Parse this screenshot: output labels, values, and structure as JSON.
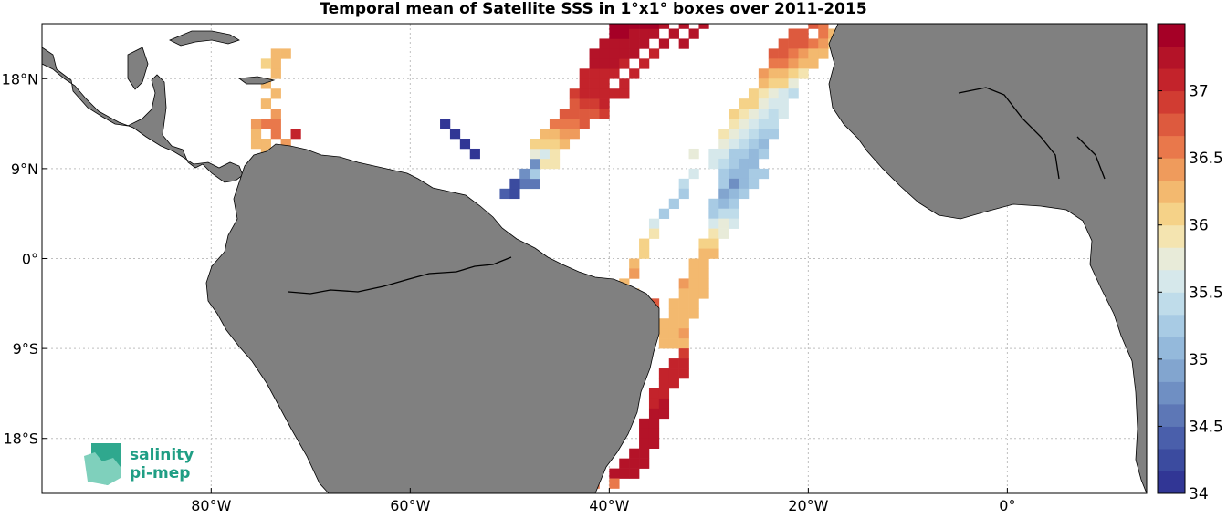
{
  "title": "Temporal mean of Satellite SSS in 1°x1° boxes over 2011-2015",
  "lon_ticks": [
    {
      "lon": -80,
      "label": "80°W"
    },
    {
      "lon": -60,
      "label": "60°W"
    },
    {
      "lon": -40,
      "label": "40°W"
    },
    {
      "lon": -20,
      "label": "20°W"
    },
    {
      "lon": 0,
      "label": "0°"
    }
  ],
  "lat_ticks": [
    {
      "lat": 18,
      "label": "18°N"
    },
    {
      "lat": 9,
      "label": "9°N"
    },
    {
      "lat": 0,
      "label": "0°"
    },
    {
      "lat": -9,
      "label": "9°S"
    },
    {
      "lat": -18,
      "label": "18°S"
    }
  ],
  "map_extent": {
    "lon": [
      -97,
      14
    ],
    "lat": [
      -23.5,
      23.5
    ]
  },
  "colorbar": {
    "min": 34,
    "max": 37.5,
    "step": 0.125,
    "tick_values": [
      34,
      34.5,
      35,
      35.5,
      36,
      36.5,
      37
    ],
    "tick_labels": [
      "34",
      "34.5",
      "35",
      "35.5",
      "36",
      "36.5",
      "37"
    ],
    "colors": [
      "#313695",
      "#3b4b9f",
      "#4a5fab",
      "#5d77b6",
      "#6f8fc3",
      "#82a5cf",
      "#94b9db",
      "#a8cbe4",
      "#bfdcea",
      "#d6e8eb",
      "#e8ebd9",
      "#f4e4b0",
      "#f5d288",
      "#f3b96f",
      "#ef9b5c",
      "#e9784b",
      "#dd5a3e",
      "#d13c32",
      "#c3232b",
      "#b41328",
      "#a50026"
    ]
  },
  "logo": {
    "line1": "salinity",
    "line2": "pi-mep"
  },
  "colors": {
    "land": "#808080",
    "coast": "#000000",
    "grid": "#bfbfbf"
  },
  "chart_data": {
    "type": "heatmap",
    "variable": "SSS",
    "grid": "1°x1° boxes",
    "cells": [
      [
        -73,
        20,
        36.3
      ],
      [
        -74,
        20,
        36.2
      ],
      [
        -74,
        19,
        36.2
      ],
      [
        -75,
        19,
        36.1
      ],
      [
        -74,
        18,
        36.3
      ],
      [
        -75,
        17,
        36.2
      ],
      [
        -74,
        16,
        36.3
      ],
      [
        -75,
        15,
        36.3
      ],
      [
        -74,
        14,
        36.4
      ],
      [
        -75,
        13,
        36.5
      ],
      [
        -76,
        13,
        36.4
      ],
      [
        -74,
        13,
        36.5
      ],
      [
        -76,
        12,
        36.3
      ],
      [
        -74,
        12,
        36.6
      ],
      [
        -75,
        11,
        36.3
      ],
      [
        -72,
        12,
        37.1
      ],
      [
        -73,
        11,
        36.4
      ],
      [
        -76,
        11,
        36.2
      ],
      [
        -74,
        10,
        36.2
      ],
      [
        -75,
        10,
        36.2
      ],
      [
        -57,
        13,
        34.1
      ],
      [
        -56,
        12,
        34.1
      ],
      [
        -55,
        11,
        34.0
      ],
      [
        -54,
        10,
        34.1
      ],
      [
        -51,
        6,
        34.4
      ],
      [
        -50,
        6,
        34.2
      ],
      [
        -49,
        7,
        34.5
      ],
      [
        -48,
        7,
        34.6
      ],
      [
        -50,
        7,
        34.3
      ],
      [
        -48,
        8,
        35.2
      ],
      [
        -48,
        9,
        34.7
      ],
      [
        -49,
        8,
        34.7
      ],
      [
        -47,
        9,
        35.9
      ],
      [
        -46,
        9,
        35.9
      ],
      [
        -48,
        10,
        35.7
      ],
      [
        -47,
        10,
        35.6
      ],
      [
        -46,
        10,
        35.9
      ],
      [
        -48,
        11,
        36.0
      ],
      [
        -47,
        11,
        36.1
      ],
      [
        -46,
        11,
        36.1
      ],
      [
        -45,
        11,
        36.3
      ],
      [
        -47,
        12,
        36.3
      ],
      [
        -46,
        12,
        36.3
      ],
      [
        -45,
        12,
        36.4
      ],
      [
        -44,
        12,
        36.4
      ],
      [
        -46,
        13,
        36.5
      ],
      [
        -45,
        13,
        36.6
      ],
      [
        -44,
        13,
        36.5
      ],
      [
        -43,
        13,
        36.7
      ],
      [
        -45,
        14,
        36.7
      ],
      [
        -44,
        14,
        36.7
      ],
      [
        -43,
        14,
        36.8
      ],
      [
        -42,
        14,
        36.8
      ],
      [
        -41,
        14,
        36.9
      ],
      [
        -44,
        15,
        36.8
      ],
      [
        -43,
        15,
        36.9
      ],
      [
        -42,
        15,
        36.9
      ],
      [
        -41,
        15,
        37.0
      ],
      [
        -44,
        16,
        36.9
      ],
      [
        -43,
        16,
        37.0
      ],
      [
        -42,
        16,
        37.0
      ],
      [
        -41,
        16,
        37.0
      ],
      [
        -40,
        16,
        37.0
      ],
      [
        -39,
        16,
        37.0
      ],
      [
        -43,
        17,
        37.1
      ],
      [
        -42,
        17,
        37.1
      ],
      [
        -41,
        17,
        37.0
      ],
      [
        -39,
        17,
        37.0
      ],
      [
        -43,
        18,
        37.1
      ],
      [
        -42,
        18,
        37.1
      ],
      [
        -41,
        18,
        37.1
      ],
      [
        -40,
        18,
        37.1
      ],
      [
        -38,
        18,
        37.0
      ],
      [
        -42,
        19,
        37.2
      ],
      [
        -41,
        19,
        37.2
      ],
      [
        -40,
        19,
        37.2
      ],
      [
        -39,
        19,
        37.1
      ],
      [
        -37,
        19,
        37.1
      ],
      [
        -42,
        20,
        37.2
      ],
      [
        -41,
        20,
        37.3
      ],
      [
        -40,
        20,
        37.3
      ],
      [
        -39,
        20,
        37.3
      ],
      [
        -38,
        20,
        37.3
      ],
      [
        -36,
        20,
        37.1
      ],
      [
        -41,
        21,
        37.3
      ],
      [
        -40,
        21,
        37.3
      ],
      [
        -39,
        21,
        37.3
      ],
      [
        -38,
        21,
        37.3
      ],
      [
        -37,
        21,
        37.3
      ],
      [
        -35,
        21,
        37.2
      ],
      [
        -33,
        21,
        37.2
      ],
      [
        -40,
        22,
        37.4
      ],
      [
        -39,
        22,
        37.4
      ],
      [
        -38,
        22,
        37.3
      ],
      [
        -37,
        22,
        37.3
      ],
      [
        -36,
        22,
        37.3
      ],
      [
        -34,
        22,
        37.2
      ],
      [
        -32,
        22,
        37.2
      ],
      [
        -40,
        23,
        37.4
      ],
      [
        -39,
        23,
        37.4
      ],
      [
        -38,
        23,
        37.4
      ],
      [
        -37,
        23,
        37.4
      ],
      [
        -36,
        23,
        37.4
      ],
      [
        -35,
        23,
        37.3
      ],
      [
        -33,
        23,
        37.3
      ],
      [
        -31,
        23,
        37.2
      ],
      [
        -20,
        23,
        36.7
      ],
      [
        -19,
        23,
        36.6
      ],
      [
        -22,
        22,
        36.8
      ],
      [
        -21,
        22,
        36.8
      ],
      [
        -19,
        22,
        36.6
      ],
      [
        -18,
        22,
        36.3
      ],
      [
        -23,
        21,
        36.8
      ],
      [
        -22,
        21,
        36.7
      ],
      [
        -21,
        21,
        36.8
      ],
      [
        -20,
        21,
        36.6
      ],
      [
        -19,
        21,
        36.4
      ],
      [
        -18,
        21,
        36.0
      ],
      [
        -24,
        20,
        36.7
      ],
      [
        -23,
        20,
        36.7
      ],
      [
        -22,
        20,
        36.6
      ],
      [
        -21,
        20,
        36.4
      ],
      [
        -20,
        20,
        36.3
      ],
      [
        -19,
        20,
        36.2
      ],
      [
        -24,
        19,
        36.6
      ],
      [
        -23,
        19,
        36.6
      ],
      [
        -22,
        19,
        36.4
      ],
      [
        -21,
        19,
        36.3
      ],
      [
        -20,
        19,
        36.2
      ],
      [
        -25,
        18,
        36.4
      ],
      [
        -24,
        18,
        36.3
      ],
      [
        -23,
        18,
        36.2
      ],
      [
        -22,
        18,
        36.1
      ],
      [
        -21,
        18,
        35.9
      ],
      [
        -25,
        17,
        36.2
      ],
      [
        -24,
        17,
        36.1
      ],
      [
        -23,
        17,
        36.0
      ],
      [
        -22,
        17,
        35.8
      ],
      [
        -26,
        16,
        36.1
      ],
      [
        -25,
        16,
        35.9
      ],
      [
        -24,
        16,
        35.7
      ],
      [
        -23,
        16,
        35.6
      ],
      [
        -22,
        16,
        35.4
      ],
      [
        -27,
        15,
        36.1
      ],
      [
        -26,
        15,
        36.0
      ],
      [
        -25,
        15,
        35.8
      ],
      [
        -24,
        15,
        35.6
      ],
      [
        -23,
        15,
        35.5
      ],
      [
        -28,
        14,
        36.1
      ],
      [
        -27,
        14,
        35.9
      ],
      [
        -26,
        14,
        35.7
      ],
      [
        -25,
        14,
        35.5
      ],
      [
        -24,
        14,
        35.4
      ],
      [
        -23,
        14,
        35.5
      ],
      [
        -28,
        13,
        35.9
      ],
      [
        -27,
        13,
        35.8
      ],
      [
        -26,
        13,
        35.6
      ],
      [
        -25,
        13,
        35.4
      ],
      [
        -24,
        13,
        35.4
      ],
      [
        -29,
        12,
        35.9
      ],
      [
        -28,
        12,
        35.7
      ],
      [
        -27,
        12,
        35.5
      ],
      [
        -26,
        12,
        35.4
      ],
      [
        -25,
        12,
        35.2
      ],
      [
        -24,
        12,
        35.3
      ],
      [
        -29,
        11,
        35.7
      ],
      [
        -28,
        11,
        35.6
      ],
      [
        -27,
        11,
        35.4
      ],
      [
        -26,
        11,
        35.2
      ],
      [
        -25,
        11,
        35.1
      ],
      [
        -32,
        10,
        35.8
      ],
      [
        -30,
        10,
        35.6
      ],
      [
        -29,
        10,
        35.5
      ],
      [
        -28,
        10,
        35.3
      ],
      [
        -27,
        10,
        35.2
      ],
      [
        -26,
        10,
        35.1
      ],
      [
        -25,
        10,
        35.2
      ],
      [
        -30,
        9,
        35.6
      ],
      [
        -29,
        9,
        35.4
      ],
      [
        -28,
        9,
        35.2
      ],
      [
        -27,
        9,
        35.0
      ],
      [
        -26,
        9,
        35.1
      ],
      [
        -32,
        8,
        35.5
      ],
      [
        -29,
        8,
        35.3
      ],
      [
        -28,
        8,
        35.1
      ],
      [
        -27,
        8,
        35.0
      ],
      [
        -26,
        8,
        35.2
      ],
      [
        -25,
        8,
        35.3
      ],
      [
        -33,
        7,
        35.4
      ],
      [
        -29,
        7,
        35.2
      ],
      [
        -28,
        7,
        34.8
      ],
      [
        -27,
        7,
        35.1
      ],
      [
        -26,
        7,
        35.3
      ],
      [
        -33,
        6,
        35.3
      ],
      [
        -29,
        6,
        34.9
      ],
      [
        -28,
        6,
        35.0
      ],
      [
        -27,
        6,
        35.2
      ],
      [
        -34,
        5,
        35.2
      ],
      [
        -30,
        5,
        35.2
      ],
      [
        -29,
        5,
        35.1
      ],
      [
        -28,
        5,
        35.3
      ],
      [
        -35,
        4,
        35.2
      ],
      [
        -30,
        4,
        35.3
      ],
      [
        -29,
        4,
        35.4
      ],
      [
        -28,
        4,
        35.4
      ],
      [
        -36,
        3,
        35.6
      ],
      [
        -30,
        3,
        35.6
      ],
      [
        -29,
        3,
        35.8
      ],
      [
        -28,
        3,
        35.6
      ],
      [
        -36,
        2,
        35.9
      ],
      [
        -30,
        2,
        35.9
      ],
      [
        -29,
        2,
        35.7
      ],
      [
        -37,
        1,
        36.0
      ],
      [
        -31,
        1,
        36.0
      ],
      [
        -30,
        1,
        36.0
      ],
      [
        -37,
        0,
        36.1
      ],
      [
        -31,
        0,
        36.3
      ],
      [
        -30,
        0,
        36.2
      ],
      [
        -38,
        -1,
        36.3
      ],
      [
        -32,
        -1,
        36.3
      ],
      [
        -31,
        -1,
        36.3
      ],
      [
        -38,
        -2,
        36.4
      ],
      [
        -32,
        -2,
        36.3
      ],
      [
        -31,
        -2,
        36.3
      ],
      [
        -39,
        -3,
        36.3
      ],
      [
        -33,
        -3,
        36.4
      ],
      [
        -32,
        -3,
        36.3
      ],
      [
        -31,
        -3,
        36.2
      ],
      [
        -38,
        -4,
        36.3
      ],
      [
        -33,
        -4,
        36.3
      ],
      [
        -32,
        -4,
        36.3
      ],
      [
        -31,
        -4,
        36.2
      ],
      [
        -37,
        -5,
        36.7
      ],
      [
        -36,
        -5,
        36.8
      ],
      [
        -34,
        -5,
        36.2
      ],
      [
        -33,
        -5,
        36.3
      ],
      [
        -32,
        -5,
        36.3
      ],
      [
        -34,
        -6,
        36.3
      ],
      [
        -33,
        -6,
        36.3
      ],
      [
        -32,
        -6,
        36.3
      ],
      [
        -35,
        -7,
        36.3
      ],
      [
        -34,
        -7,
        36.3
      ],
      [
        -33,
        -7,
        36.3
      ],
      [
        -35,
        -8,
        36.3
      ],
      [
        -34,
        -8,
        36.3
      ],
      [
        -33,
        -8,
        36.4
      ],
      [
        -35,
        -9,
        36.3
      ],
      [
        -34,
        -9,
        36.3
      ],
      [
        -33,
        -9,
        36.3
      ],
      [
        -33,
        -10,
        36.9
      ],
      [
        -34,
        -11,
        37.0
      ],
      [
        -33,
        -11,
        37.0
      ],
      [
        -35,
        -12,
        37.0
      ],
      [
        -34,
        -12,
        37.1
      ],
      [
        -33,
        -12,
        37.0
      ],
      [
        -35,
        -13,
        37.1
      ],
      [
        -34,
        -13,
        37.1
      ],
      [
        -36,
        -14,
        37.1
      ],
      [
        -35,
        -14,
        37.1
      ],
      [
        -36,
        -15,
        37.1
      ],
      [
        -35,
        -15,
        37.2
      ],
      [
        -36,
        -16,
        37.2
      ],
      [
        -35,
        -16,
        37.2
      ],
      [
        -37,
        -17,
        37.2
      ],
      [
        -36,
        -17,
        37.2
      ],
      [
        -37,
        -18,
        37.2
      ],
      [
        -36,
        -18,
        37.2
      ],
      [
        -37,
        -19,
        37.3
      ],
      [
        -36,
        -19,
        37.3
      ],
      [
        -38,
        -20,
        37.3
      ],
      [
        -37,
        -20,
        37.3
      ],
      [
        -39,
        -21,
        37.3
      ],
      [
        -38,
        -21,
        37.3
      ],
      [
        -37,
        -21,
        37.3
      ],
      [
        -40,
        -22,
        37.3
      ],
      [
        -39,
        -22,
        37.3
      ],
      [
        -38,
        -22,
        37.3
      ],
      [
        -40,
        -23,
        36.6
      ],
      [
        -42,
        -23,
        36.6
      ]
    ]
  }
}
